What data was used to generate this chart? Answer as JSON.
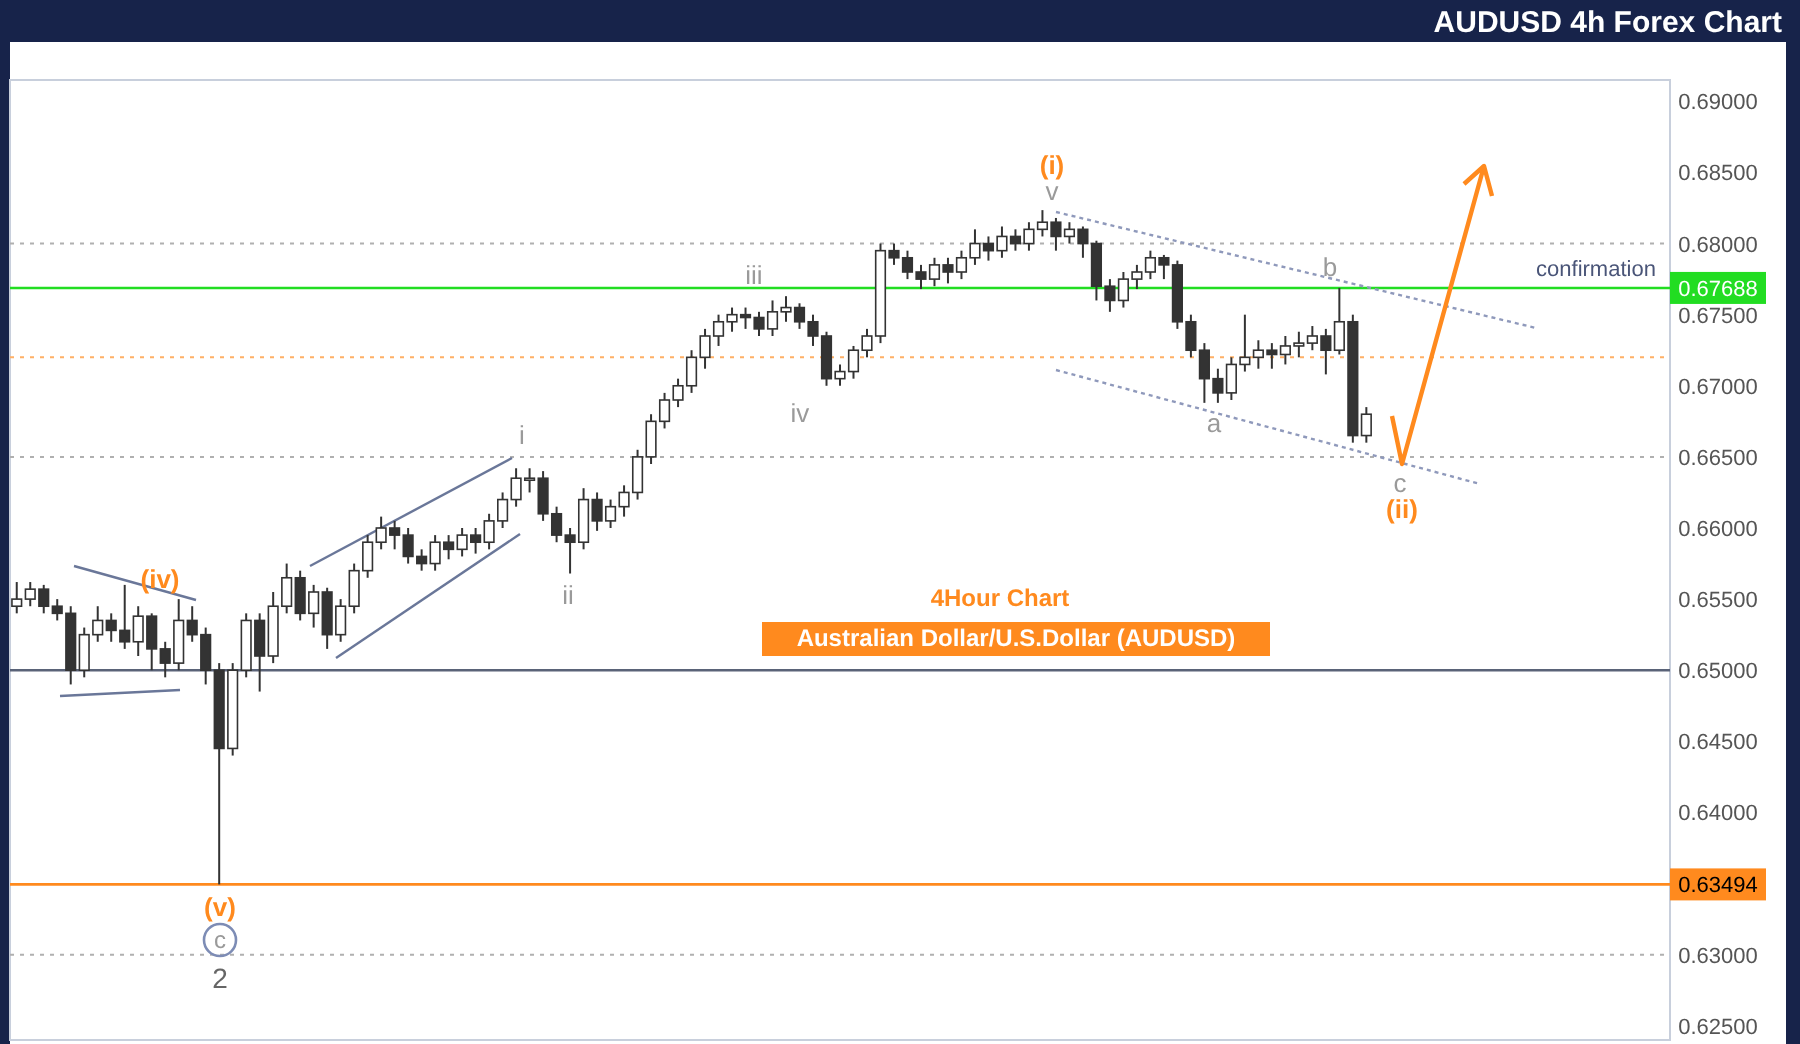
{
  "chart_data": {
    "type": "candlestick",
    "title": "AUDUSD 4h Forex Chart",
    "categories": [
      null,
      null,
      null,
      null,
      null,
      null,
      null,
      null,
      null,
      null,
      null,
      null,
      null,
      null,
      null,
      null,
      null,
      null,
      null,
      null,
      null,
      null,
      null,
      null,
      null,
      null,
      null,
      null,
      null,
      null,
      null,
      null,
      null,
      null,
      null,
      null,
      null,
      null,
      null,
      null,
      null,
      null,
      null,
      null,
      null,
      null,
      null,
      null,
      null,
      null,
      null,
      null,
      null,
      null,
      null,
      null,
      null,
      null,
      null,
      null,
      null,
      null,
      null,
      null,
      null,
      null,
      null,
      null,
      null,
      null,
      null,
      null,
      null,
      null,
      null,
      null,
      null,
      null,
      null,
      null,
      null,
      null,
      null,
      null,
      null,
      null,
      null,
      null,
      null,
      null,
      null,
      null,
      null,
      null,
      null,
      null,
      null,
      null,
      null,
      null,
      null,
      null,
      null,
      null,
      null,
      null,
      null,
      null,
      null,
      null,
      null,
      null,
      null,
      null,
      null,
      null,
      null,
      null,
      null,
      null,
      null,
      null,
      null
    ],
    "series": [
      {
        "color": "#333333",
        "ohlc": [
          [
            0.6545,
            0.6562,
            0.654,
            0.655
          ],
          [
            0.655,
            0.6562,
            0.6545,
            0.6557
          ],
          [
            0.6557,
            0.656,
            0.654,
            0.6545
          ],
          [
            0.6545,
            0.655,
            0.6535,
            0.654
          ],
          [
            0.654,
            0.6545,
            0.649,
            0.65
          ],
          [
            0.65,
            0.653,
            0.6495,
            0.6525
          ],
          [
            0.6525,
            0.6545,
            0.652,
            0.6535
          ],
          [
            0.6535,
            0.654,
            0.652,
            0.6528
          ],
          [
            0.6528,
            0.656,
            0.6515,
            0.652
          ],
          [
            0.652,
            0.6545,
            0.651,
            0.6538
          ],
          [
            0.6538,
            0.654,
            0.65,
            0.6515
          ],
          [
            0.6515,
            0.652,
            0.6495,
            0.6505
          ],
          [
            0.6505,
            0.655,
            0.65,
            0.6535
          ],
          [
            0.6535,
            0.6545,
            0.652,
            0.6525
          ],
          [
            0.6525,
            0.653,
            0.649,
            0.65
          ],
          [
            0.65,
            0.6505,
            0.63494,
            0.6445
          ],
          [
            0.6445,
            0.6505,
            0.644,
            0.65
          ],
          [
            0.65,
            0.654,
            0.6495,
            0.6535
          ],
          [
            0.6535,
            0.654,
            0.6485,
            0.651
          ],
          [
            0.651,
            0.6555,
            0.6505,
            0.6545
          ],
          [
            0.6545,
            0.6575,
            0.654,
            0.6565
          ],
          [
            0.6565,
            0.657,
            0.6535,
            0.654
          ],
          [
            0.654,
            0.656,
            0.653,
            0.6555
          ],
          [
            0.6555,
            0.6558,
            0.6515,
            0.6525
          ],
          [
            0.6525,
            0.655,
            0.652,
            0.6545
          ],
          [
            0.6545,
            0.6575,
            0.654,
            0.657
          ],
          [
            0.657,
            0.6595,
            0.6565,
            0.659
          ],
          [
            0.659,
            0.6608,
            0.6585,
            0.66
          ],
          [
            0.66,
            0.6605,
            0.6585,
            0.6595
          ],
          [
            0.6595,
            0.66,
            0.6575,
            0.658
          ],
          [
            0.658,
            0.6585,
            0.657,
            0.6575
          ],
          [
            0.6575,
            0.6595,
            0.657,
            0.659
          ],
          [
            0.659,
            0.6595,
            0.6578,
            0.6585
          ],
          [
            0.6585,
            0.66,
            0.658,
            0.6595
          ],
          [
            0.6595,
            0.66,
            0.6582,
            0.659
          ],
          [
            0.659,
            0.661,
            0.6585,
            0.6605
          ],
          [
            0.6605,
            0.6625,
            0.66,
            0.662
          ],
          [
            0.662,
            0.6642,
            0.6615,
            0.6635
          ],
          [
            0.6635,
            0.6642,
            0.6625,
            0.6635
          ],
          [
            0.6635,
            0.664,
            0.6605,
            0.661
          ],
          [
            0.661,
            0.6615,
            0.659,
            0.6595
          ],
          [
            0.6595,
            0.66,
            0.6568,
            0.659
          ],
          [
            0.659,
            0.6628,
            0.6585,
            0.662
          ],
          [
            0.662,
            0.6625,
            0.6598,
            0.6605
          ],
          [
            0.6605,
            0.662,
            0.66,
            0.6615
          ],
          [
            0.6615,
            0.663,
            0.6608,
            0.6625
          ],
          [
            0.6625,
            0.6655,
            0.662,
            0.665
          ],
          [
            0.665,
            0.668,
            0.6645,
            0.6675
          ],
          [
            0.6675,
            0.6695,
            0.667,
            0.669
          ],
          [
            0.669,
            0.6705,
            0.6685,
            0.67
          ],
          [
            0.67,
            0.6725,
            0.6695,
            0.672
          ],
          [
            0.672,
            0.674,
            0.6712,
            0.6735
          ],
          [
            0.6735,
            0.675,
            0.6728,
            0.6745
          ],
          [
            0.6745,
            0.6755,
            0.6738,
            0.675
          ],
          [
            0.675,
            0.6755,
            0.674,
            0.6748
          ],
          [
            0.6748,
            0.6752,
            0.6735,
            0.674
          ],
          [
            0.674,
            0.676,
            0.6735,
            0.6752
          ],
          [
            0.6752,
            0.6763,
            0.6745,
            0.6755
          ],
          [
            0.6755,
            0.6758,
            0.674,
            0.6745
          ],
          [
            0.6745,
            0.675,
            0.6728,
            0.6735
          ],
          [
            0.6735,
            0.6738,
            0.67,
            0.6705
          ],
          [
            0.6705,
            0.6715,
            0.67,
            0.671
          ],
          [
            0.671,
            0.6728,
            0.6705,
            0.6725
          ],
          [
            0.6725,
            0.674,
            0.672,
            0.6735
          ],
          [
            0.6735,
            0.68,
            0.673,
            0.6795
          ],
          [
            0.6795,
            0.68,
            0.6785,
            0.679
          ],
          [
            0.679,
            0.6795,
            0.6775,
            0.678
          ],
          [
            0.678,
            0.6785,
            0.6768,
            0.6775
          ],
          [
            0.6775,
            0.679,
            0.677,
            0.6785
          ],
          [
            0.6785,
            0.679,
            0.6772,
            0.678
          ],
          [
            0.678,
            0.6795,
            0.6775,
            0.679
          ],
          [
            0.679,
            0.681,
            0.6785,
            0.68
          ],
          [
            0.68,
            0.6805,
            0.6788,
            0.6795
          ],
          [
            0.6795,
            0.6812,
            0.679,
            0.6805
          ],
          [
            0.6805,
            0.681,
            0.6795,
            0.68
          ],
          [
            0.68,
            0.6815,
            0.6795,
            0.681
          ],
          [
            0.681,
            0.68235,
            0.6805,
            0.6815
          ],
          [
            0.6815,
            0.6818,
            0.6795,
            0.6805
          ],
          [
            0.6805,
            0.6815,
            0.68,
            0.681
          ],
          [
            0.681,
            0.6812,
            0.679,
            0.68
          ],
          [
            0.68,
            0.6802,
            0.676,
            0.677
          ],
          [
            0.677,
            0.6775,
            0.6752,
            0.676
          ],
          [
            0.676,
            0.678,
            0.6755,
            0.6775
          ],
          [
            0.6775,
            0.6785,
            0.6768,
            0.678
          ],
          [
            0.678,
            0.6795,
            0.6775,
            0.679
          ],
          [
            0.679,
            0.6792,
            0.6775,
            0.6785
          ],
          [
            0.6785,
            0.6788,
            0.674,
            0.6745
          ],
          [
            0.6745,
            0.675,
            0.672,
            0.6725
          ],
          [
            0.6725,
            0.673,
            0.6688,
            0.6705
          ],
          [
            0.6705,
            0.6712,
            0.6688,
            0.6695
          ],
          [
            0.6695,
            0.672,
            0.669,
            0.6715
          ],
          [
            0.6715,
            0.675,
            0.671,
            0.672
          ],
          [
            0.672,
            0.6732,
            0.6712,
            0.6725
          ],
          [
            0.6725,
            0.673,
            0.6712,
            0.6722
          ],
          [
            0.6722,
            0.6735,
            0.6715,
            0.6728
          ],
          [
            0.6728,
            0.6738,
            0.672,
            0.673
          ],
          [
            0.673,
            0.6742,
            0.6725,
            0.6735
          ],
          [
            0.6735,
            0.674,
            0.6708,
            0.6725
          ],
          [
            0.6725,
            0.67688,
            0.6722,
            0.6745
          ],
          [
            0.6745,
            0.675,
            0.666,
            0.6665
          ],
          [
            0.6665,
            0.6685,
            0.666,
            0.668
          ],
          null,
          null,
          null,
          null,
          null,
          null,
          null,
          null,
          null,
          null,
          null,
          null,
          null,
          null,
          null,
          null,
          null,
          null,
          null,
          null,
          null,
          null
        ]
      }
    ],
    "ylim": [
      0.624,
      0.6915
    ],
    "yticks": [
      {
        "value": 0.625,
        "label": "0.62500"
      },
      {
        "value": 0.63,
        "label": "0.63000"
      },
      {
        "value": 0.635,
        "label": null
      },
      {
        "value": 0.64,
        "label": "0.64000"
      },
      {
        "value": 0.645,
        "label": "0.64500"
      },
      {
        "value": 0.65,
        "label": "0.65000"
      },
      {
        "value": 0.655,
        "label": "0.65500"
      },
      {
        "value": 0.66,
        "label": "0.66000"
      },
      {
        "value": 0.665,
        "label": "0.66500"
      },
      {
        "value": 0.67,
        "label": "0.67000"
      },
      {
        "value": 0.675,
        "label": "0.67500"
      },
      {
        "value": 0.68,
        "label": "0.68000"
      },
      {
        "value": 0.685,
        "label": "0.68500"
      },
      {
        "value": 0.69,
        "label": "0.69000"
      }
    ],
    "tick_labels": "y",
    "ref_lines": [
      {
        "axis": "y",
        "value": 0.68,
        "color": "#b0b0b0",
        "line_style": "dotted"
      },
      {
        "axis": "y",
        "value": 0.665,
        "color": "#b0b0b0",
        "line_style": "dotted"
      },
      {
        "axis": "y",
        "value": 0.63,
        "color": "#b0b0b0",
        "line_style": "dotted"
      },
      {
        "axis": "y",
        "value": 0.672,
        "color": "#ffb066",
        "line_style": "dotted"
      },
      {
        "axis": "y",
        "value": 0.65,
        "color": "#5a6378",
        "line_style": "solid"
      },
      {
        "axis": "y",
        "value": 0.63494,
        "label": "0.63494",
        "color": "#ff8a1e",
        "line_style": "solid"
      },
      {
        "axis": "y",
        "value": 0.67688,
        "label": "0.67688",
        "color": "#22dd22",
        "line_style": "solid"
      }
    ],
    "annotations": [
      "(iv)",
      "(v)",
      "c",
      "2",
      "i",
      "ii",
      "iii",
      "iv",
      "(i)",
      "v",
      "a",
      "b",
      "c",
      "(ii)",
      "4Hour Chart",
      "Australian Dollar/U.S.Dollar (AUDUSD)",
      "confirmation"
    ]
  }
}
